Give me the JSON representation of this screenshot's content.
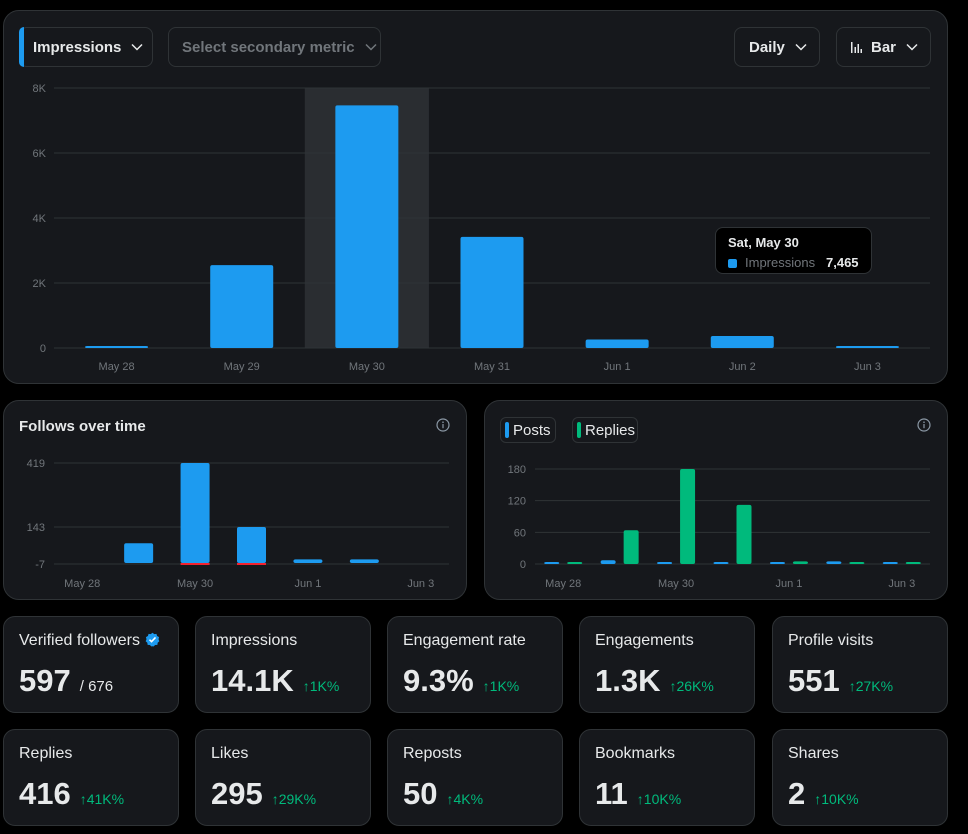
{
  "controls": {
    "primary_metric": "Impressions",
    "secondary_metric_placeholder": "Select secondary metric",
    "interval": "Daily",
    "chart_type": "Bar"
  },
  "tooltip": {
    "date": "Sat, May 30",
    "metric": "Impressions",
    "value": "7,465"
  },
  "follows_panel": {
    "title": "Follows over time"
  },
  "posts_panel": {
    "legend": [
      "Posts",
      "Replies"
    ]
  },
  "colors": {
    "accent": "#1d9bf0",
    "replies": "#00ba7c",
    "unfollows": "#f4212e",
    "positive": "#00ba7c"
  },
  "icons": {
    "chevron": "chevron-down-icon",
    "bar_chart": "bar-chart-icon",
    "info": "info-icon",
    "verified": "verified-badge-icon",
    "arrow_up": "arrow-up-icon"
  },
  "stats": [
    {
      "label": "Verified followers",
      "value": "597",
      "sub": "/ 676",
      "verified": true
    },
    {
      "label": "Impressions",
      "value": "14.1K",
      "delta": "↑1K%"
    },
    {
      "label": "Engagement rate",
      "value": "9.3%",
      "delta": "↑1K%"
    },
    {
      "label": "Engagements",
      "value": "1.3K",
      "delta": "↑26K%"
    },
    {
      "label": "Profile visits",
      "value": "551",
      "delta": "↑27K%"
    },
    {
      "label": "Replies",
      "value": "416",
      "delta": "↑41K%"
    },
    {
      "label": "Likes",
      "value": "295",
      "delta": "↑29K%"
    },
    {
      "label": "Reposts",
      "value": "50",
      "delta": "↑4K%"
    },
    {
      "label": "Bookmarks",
      "value": "11",
      "delta": "↑10K%"
    },
    {
      "label": "Shares",
      "value": "2",
      "delta": "↑10K%"
    }
  ],
  "chart_data": [
    {
      "type": "bar",
      "categories": [
        "May 28",
        "May 29",
        "May 30",
        "May 31",
        "Jun 1",
        "Jun 2",
        "Jun 3"
      ],
      "series": [
        {
          "name": "Impressions",
          "values": [
            60,
            2550,
            7465,
            3420,
            260,
            370,
            20
          ]
        }
      ],
      "ylim": [
        0,
        8000
      ],
      "y_ticks": [
        0,
        2000,
        4000,
        6000,
        8000
      ],
      "y_tick_labels": [
        "0",
        "2K",
        "4K",
        "6K",
        "8K"
      ],
      "highlight_category": "May 30",
      "grid": true
    },
    {
      "type": "bar",
      "title": "Follows over time",
      "categories": [
        "May 28",
        "May 29",
        "May 30",
        "May 31",
        "Jun 1",
        "Jun 2",
        "Jun 3"
      ],
      "x_tick_labels": [
        "May 28",
        "",
        "May 30",
        "",
        "Jun 1",
        "",
        "Jun 3"
      ],
      "series": [
        {
          "values": [
            0,
            77,
            419,
            143,
            12,
            12,
            0
          ]
        },
        {
          "values": [
            0,
            0,
            -7,
            -7,
            0,
            0,
            0
          ]
        }
      ],
      "y_ticks": [
        -7,
        143,
        419
      ],
      "ylim": [
        -7,
        419
      ],
      "grid": true
    },
    {
      "type": "bar",
      "categories": [
        "May 28",
        "May 29",
        "May 30",
        "May 31",
        "Jun 1",
        "Jun 2",
        "Jun 3"
      ],
      "x_tick_labels": [
        "May 28",
        "",
        "May 30",
        "",
        "Jun 1",
        "",
        "Jun 3"
      ],
      "series": [
        {
          "name": "Posts",
          "values": [
            1,
            7,
            2,
            2,
            1,
            5,
            0
          ]
        },
        {
          "name": "Replies",
          "values": [
            1,
            64,
            180,
            112,
            5,
            2,
            0
          ]
        }
      ],
      "y_ticks": [
        0,
        60,
        120,
        180
      ],
      "ylim": [
        0,
        190
      ],
      "legend": "top-left",
      "grid": true
    }
  ]
}
